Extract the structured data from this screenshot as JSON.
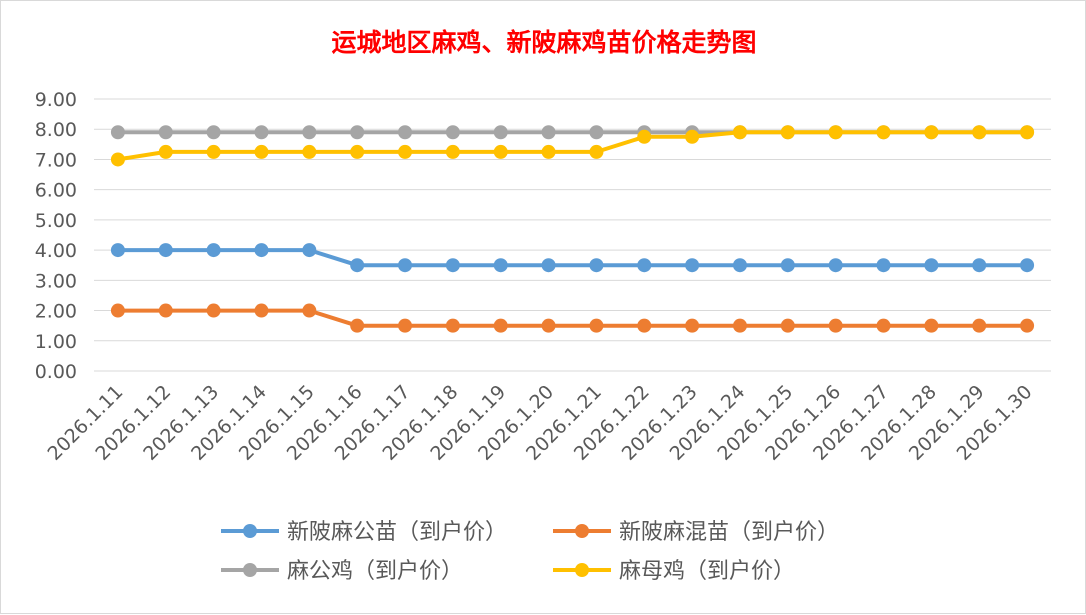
{
  "chart_data": {
    "type": "line",
    "title": "运城地区麻鸡、新陂麻鸡苗价格走势图",
    "xlabel": "",
    "ylabel": "",
    "ylim": [
      0,
      9
    ],
    "yticks": [
      "0.00",
      "1.00",
      "2.00",
      "3.00",
      "4.00",
      "5.00",
      "6.00",
      "7.00",
      "8.00",
      "9.00"
    ],
    "grid": true,
    "legend_position": "bottom",
    "categories": [
      "2026.1.11",
      "2026.1.12",
      "2026.1.13",
      "2026.1.14",
      "2026.1.15",
      "2026.1.16",
      "2026.1.17",
      "2026.1.18",
      "2026.1.19",
      "2026.1.20",
      "2026.1.21",
      "2026.1.22",
      "2026.1.23",
      "2026.1.24",
      "2026.1.25",
      "2026.1.26",
      "2026.1.27",
      "2026.1.28",
      "2026.1.29",
      "2026.1.30"
    ],
    "series": [
      {
        "name": "新陂麻公苗（到户价）",
        "color": "#5b9bd5",
        "values": [
          4.0,
          4.0,
          4.0,
          4.0,
          4.0,
          3.5,
          3.5,
          3.5,
          3.5,
          3.5,
          3.5,
          3.5,
          3.5,
          3.5,
          3.5,
          3.5,
          3.5,
          3.5,
          3.5,
          3.5
        ]
      },
      {
        "name": "新陂麻混苗（到户价）",
        "color": "#ed7d31",
        "values": [
          2.0,
          2.0,
          2.0,
          2.0,
          2.0,
          1.5,
          1.5,
          1.5,
          1.5,
          1.5,
          1.5,
          1.5,
          1.5,
          1.5,
          1.5,
          1.5,
          1.5,
          1.5,
          1.5,
          1.5
        ]
      },
      {
        "name": "麻公鸡（到户价）",
        "color": "#a5a5a5",
        "values": [
          7.9,
          7.9,
          7.9,
          7.9,
          7.9,
          7.9,
          7.9,
          7.9,
          7.9,
          7.9,
          7.9,
          7.9,
          7.9,
          7.9,
          7.9,
          7.9,
          7.9,
          7.9,
          7.9,
          7.9
        ]
      },
      {
        "name": "麻母鸡（到户价）",
        "color": "#ffc000",
        "values": [
          7.0,
          7.25,
          7.25,
          7.25,
          7.25,
          7.25,
          7.25,
          7.25,
          7.25,
          7.25,
          7.25,
          7.75,
          7.75,
          7.9,
          7.9,
          7.9,
          7.9,
          7.9,
          7.9,
          7.9
        ]
      }
    ]
  }
}
